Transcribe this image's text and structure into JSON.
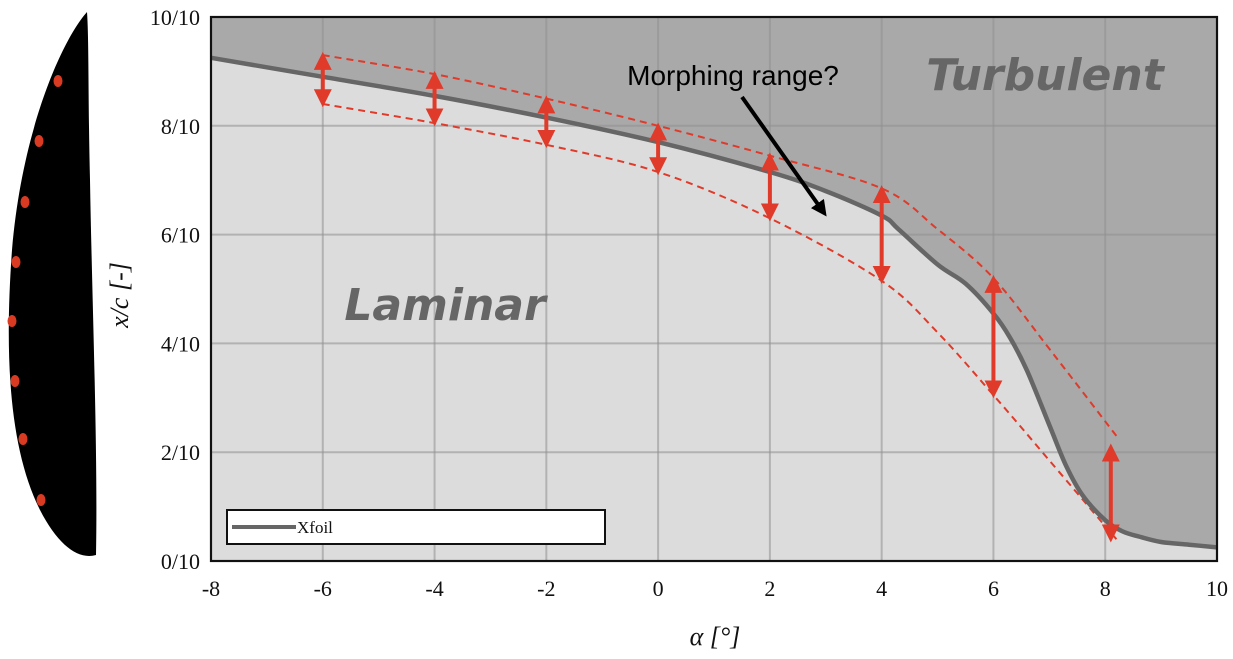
{
  "chart_data": {
    "type": "line",
    "xlabel": "α [°]",
    "ylabel": "x/c [-]",
    "xlim": [
      -8,
      10
    ],
    "ylim": [
      0,
      1
    ],
    "x_ticks": [
      -8,
      -6,
      -4,
      -2,
      0,
      2,
      4,
      6,
      8,
      10
    ],
    "x_tick_labels": [
      "-8",
      "-6",
      "-4",
      "-2",
      "0",
      "2",
      "4",
      "6",
      "8",
      "10"
    ],
    "y_ticks": [
      0,
      0.2,
      0.4,
      0.6,
      0.8,
      1.0
    ],
    "y_tick_labels": [
      "0/10",
      "2/10",
      "4/10",
      "6/10",
      "8/10",
      "10/10"
    ],
    "grid": true,
    "legend_position": "bottom-left",
    "regions": {
      "upper": "Turbulent",
      "lower": "Laminar"
    },
    "annotation": "Morphing range?",
    "series": [
      {
        "name": "Xfoil",
        "color": "#666666",
        "x": [
          -8,
          -6,
          -4,
          -2,
          0,
          2,
          3,
          4,
          4.3,
          5,
          5.5,
          6,
          6.3,
          6.6,
          7,
          7.3,
          7.6,
          8,
          8.3,
          8.6,
          9,
          9.5,
          10
        ],
        "y": [
          0.925,
          0.89,
          0.855,
          0.815,
          0.77,
          0.715,
          0.68,
          0.635,
          0.61,
          0.545,
          0.51,
          0.455,
          0.41,
          0.35,
          0.25,
          0.175,
          0.12,
          0.075,
          0.055,
          0.045,
          0.035,
          0.03,
          0.025
        ]
      }
    ],
    "morphing_band": {
      "color": "#e03a2a",
      "upper_x": [
        -6,
        -4,
        -2,
        0,
        2,
        4,
        5,
        6,
        7,
        8.2
      ],
      "upper_y": [
        0.93,
        0.895,
        0.85,
        0.8,
        0.745,
        0.685,
        0.61,
        0.52,
        0.39,
        0.23
      ],
      "lower_x": [
        -6,
        -4,
        -2,
        0,
        2,
        4,
        5,
        6,
        7,
        8.2
      ],
      "lower_y": [
        0.84,
        0.805,
        0.765,
        0.715,
        0.63,
        0.515,
        0.42,
        0.305,
        0.185,
        0.04
      ],
      "arrows": [
        {
          "x": -6,
          "y1": 0.84,
          "y2": 0.93
        },
        {
          "x": -4,
          "y1": 0.805,
          "y2": 0.895
        },
        {
          "x": -2,
          "y1": 0.765,
          "y2": 0.85
        },
        {
          "x": 0,
          "y1": 0.715,
          "y2": 0.8
        },
        {
          "x": 2,
          "y1": 0.63,
          "y2": 0.745
        },
        {
          "x": 4,
          "y1": 0.515,
          "y2": 0.685
        },
        {
          "x": 6,
          "y1": 0.305,
          "y2": 0.52
        },
        {
          "x": 8.1,
          "y1": 0.04,
          "y2": 0.21
        }
      ]
    }
  },
  "colors": {
    "turbulent_fill": "#a9a9a9",
    "laminar_fill": "#dcdcdc",
    "grid": "#8f8f8f",
    "airfoil": "#000000",
    "sensor": "#d93a22"
  },
  "airfoil": {
    "icon": "airfoil-with-sensors-icon",
    "sensor_count": 8
  }
}
